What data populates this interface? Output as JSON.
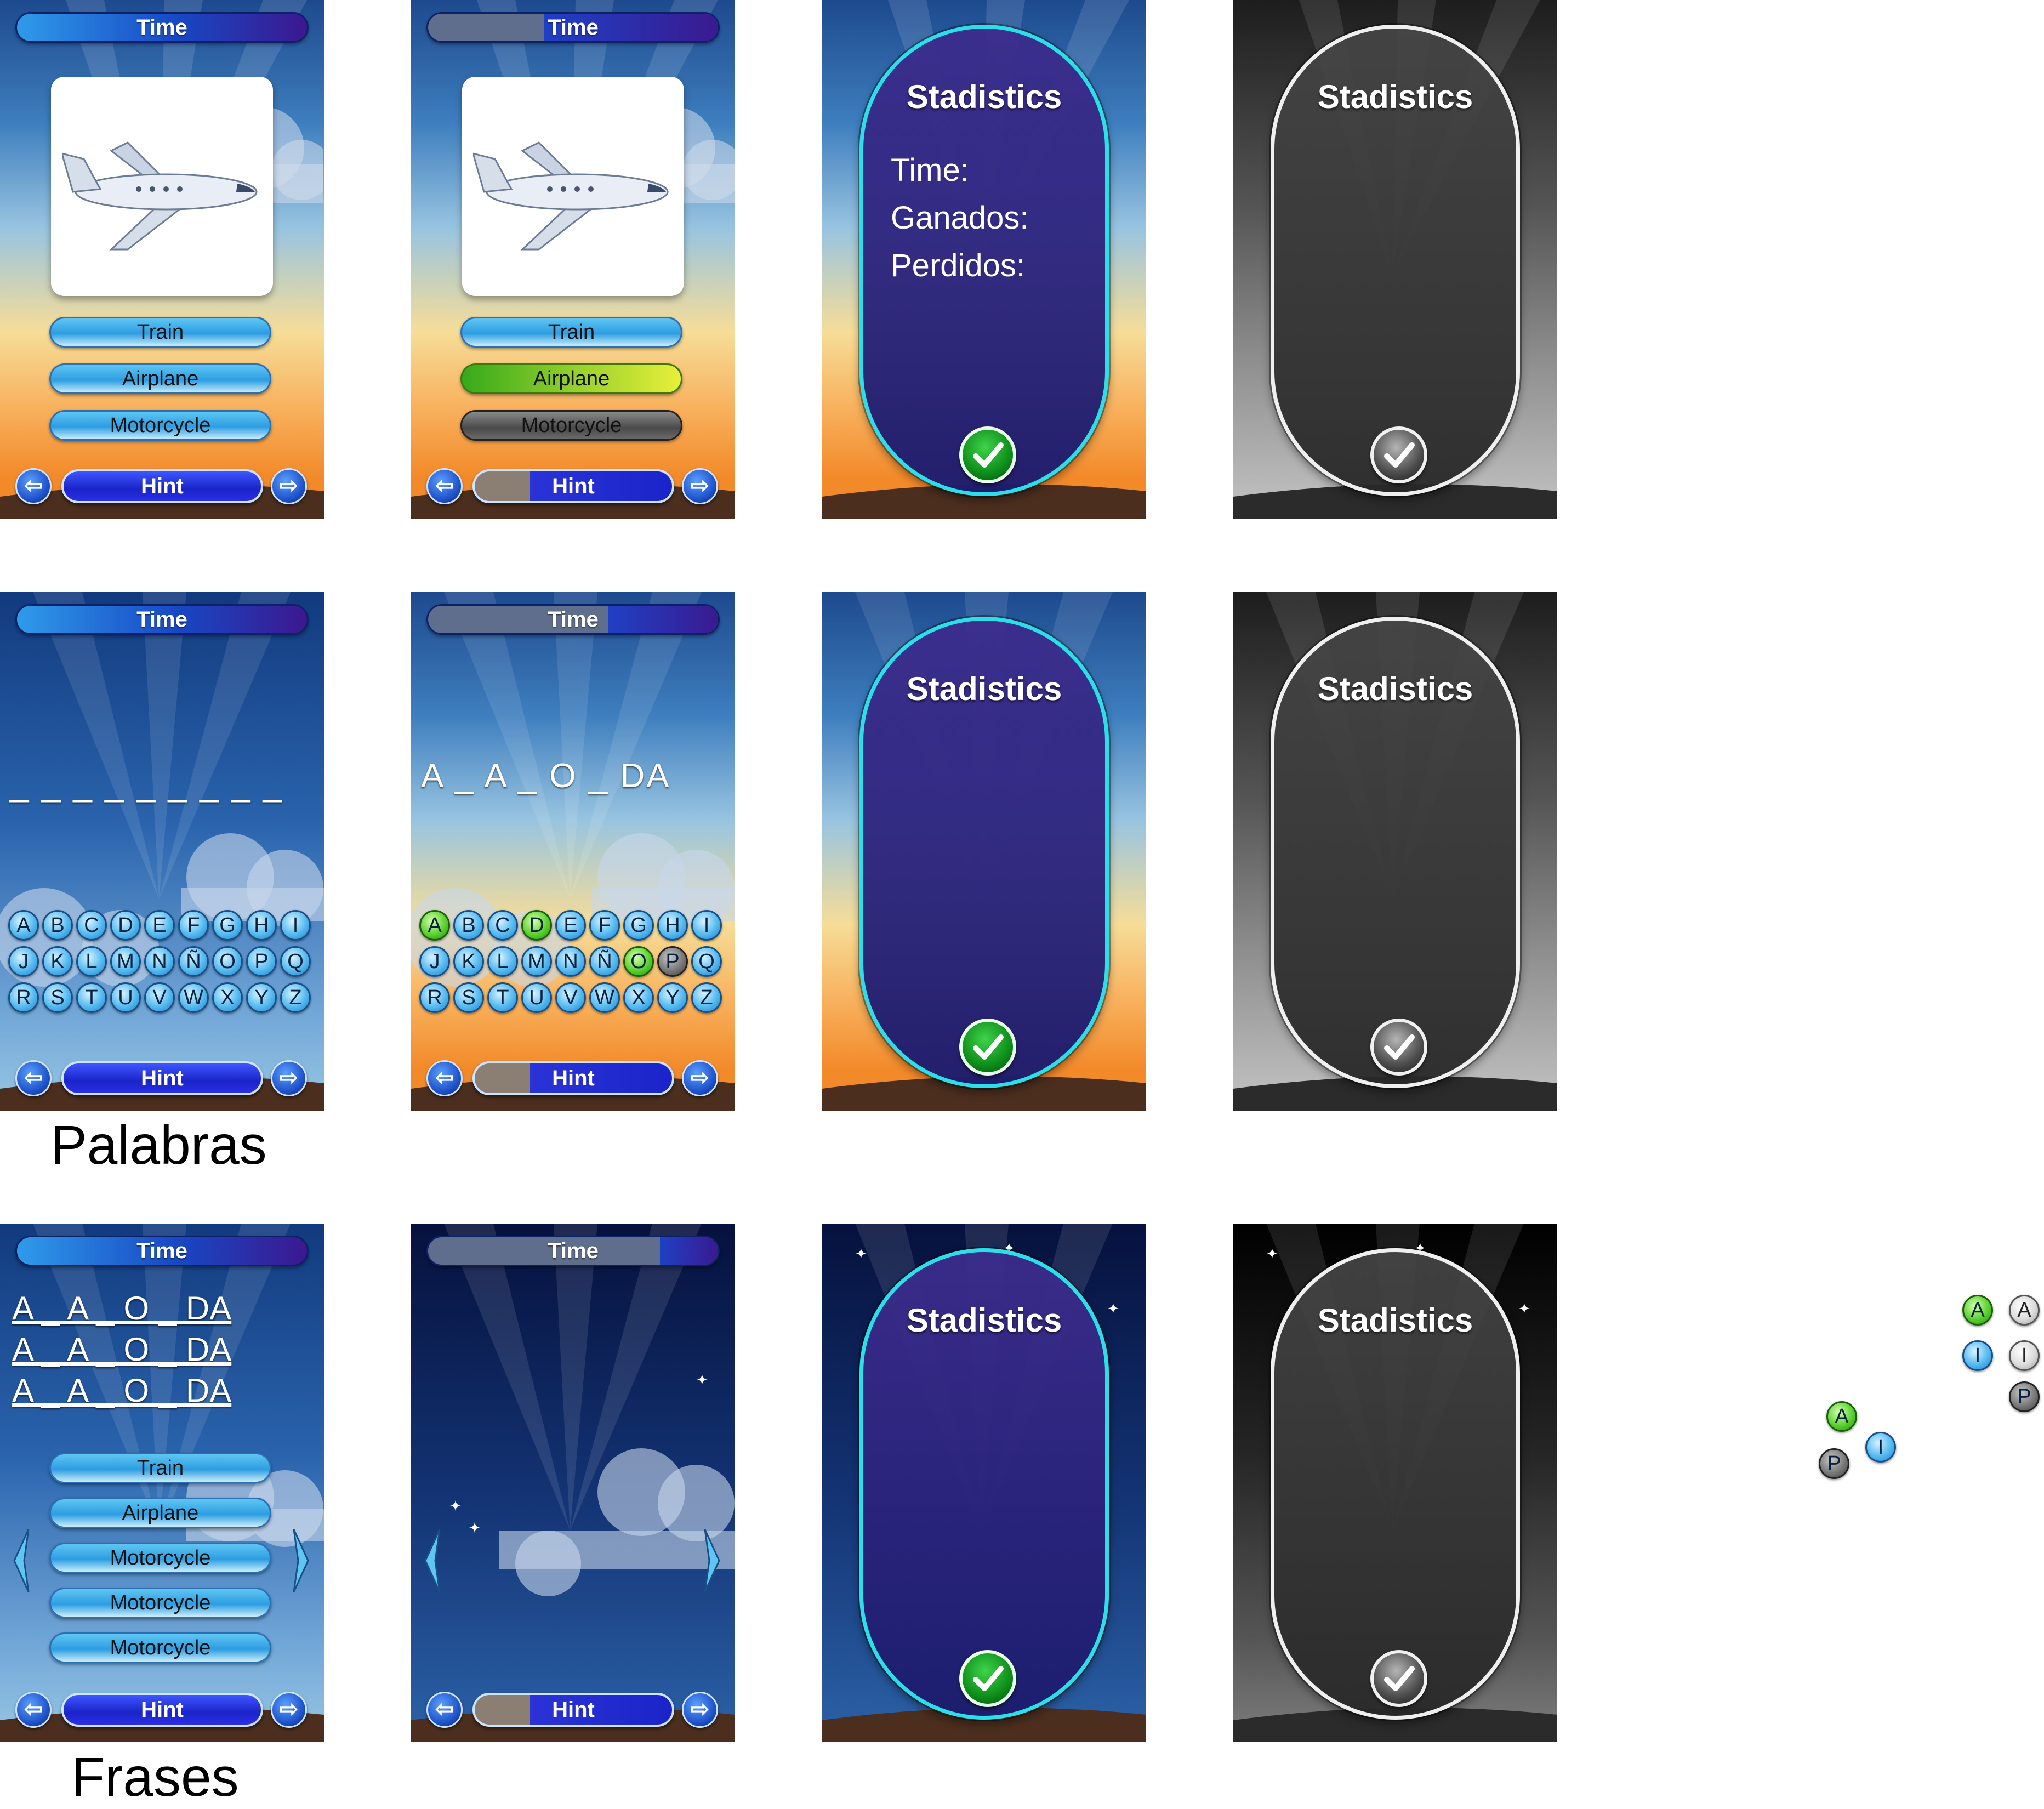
{
  "time_label": "Time",
  "hint_label": "Hint",
  "answers": [
    "Train",
    "Airplane",
    "Motorcycle"
  ],
  "phrase_answers": [
    "Train",
    "Airplane",
    "Motorcycle",
    "Motorcycle",
    "Motorcycle"
  ],
  "stats": {
    "title": "Stadistics",
    "time_label": "Time:",
    "won_label": "Ganados:",
    "lost_label": "Perdidos:"
  },
  "word_blanks": "_ _ _ _ _ _ _ _ _",
  "word_partial": "A _ A _ O _ DA",
  "phrase_lines": [
    "A _ A _ O _ DA",
    "A _ A _ O _ DA",
    "A _ A _ O _ DA"
  ],
  "letters": {
    "row1": [
      "A",
      "B",
      "C",
      "D",
      "E",
      "F",
      "G",
      "H",
      "I"
    ],
    "row2": [
      "J",
      "K",
      "L",
      "M",
      "N",
      "Ñ",
      "O",
      "P",
      "Q"
    ],
    "row3": [
      "R",
      "S",
      "T",
      "U",
      "V",
      "W",
      "X",
      "Y",
      "Z"
    ]
  },
  "labels": {
    "palabras": "Palabras",
    "frases": "Frases"
  },
  "legend_letters": [
    "A",
    "A",
    "I",
    "I",
    "P",
    "A",
    "P",
    "I"
  ],
  "colors": {
    "accent_cyan": "#2adfe8",
    "correct_green": "#5bd12f",
    "button_blue": "#2d9de2",
    "hint_blue": "#1a24c8"
  },
  "progress": {
    "time_bar_2": 0.6,
    "time_bar_5": 0.38,
    "time_bar_10": 0.2,
    "hint_partial": 0.72
  }
}
